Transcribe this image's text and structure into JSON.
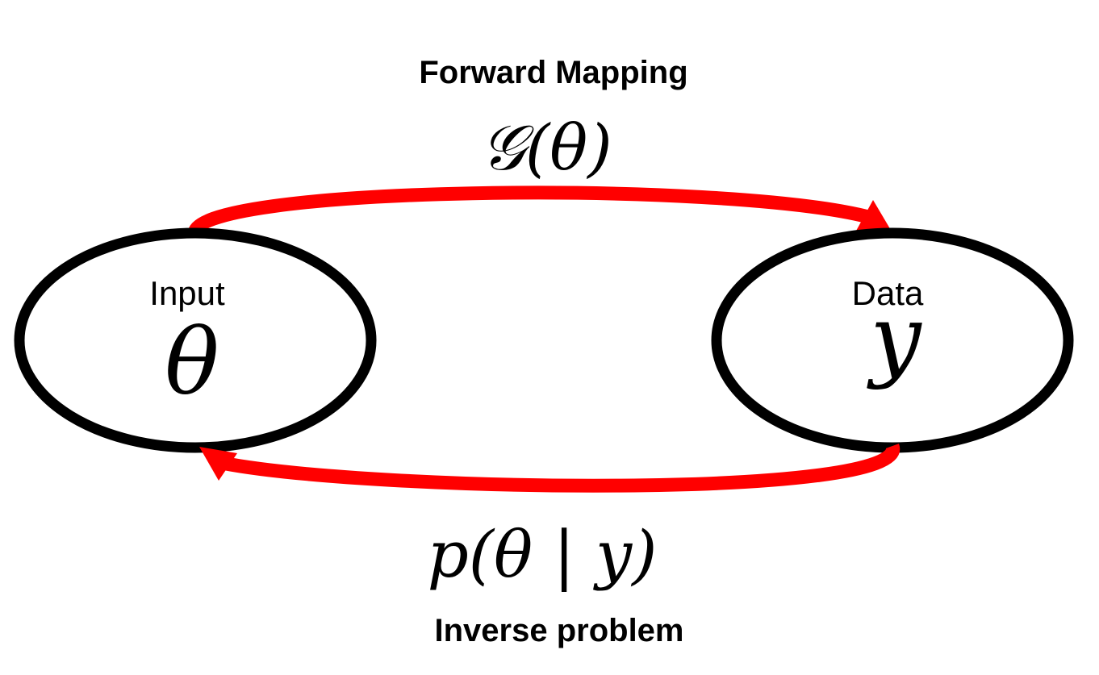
{
  "forward": {
    "title": "Forward Mapping",
    "expression": "𝒢(θ)"
  },
  "inverse": {
    "title": "Inverse problem",
    "expression": "p(θ | y)"
  },
  "nodes": {
    "input": {
      "label": "Input",
      "symbol": "θ"
    },
    "data": {
      "label": "Data",
      "symbol": "y"
    }
  },
  "colors": {
    "arrow": "#ff0000",
    "node_outline": "#000000",
    "text": "#000000"
  }
}
